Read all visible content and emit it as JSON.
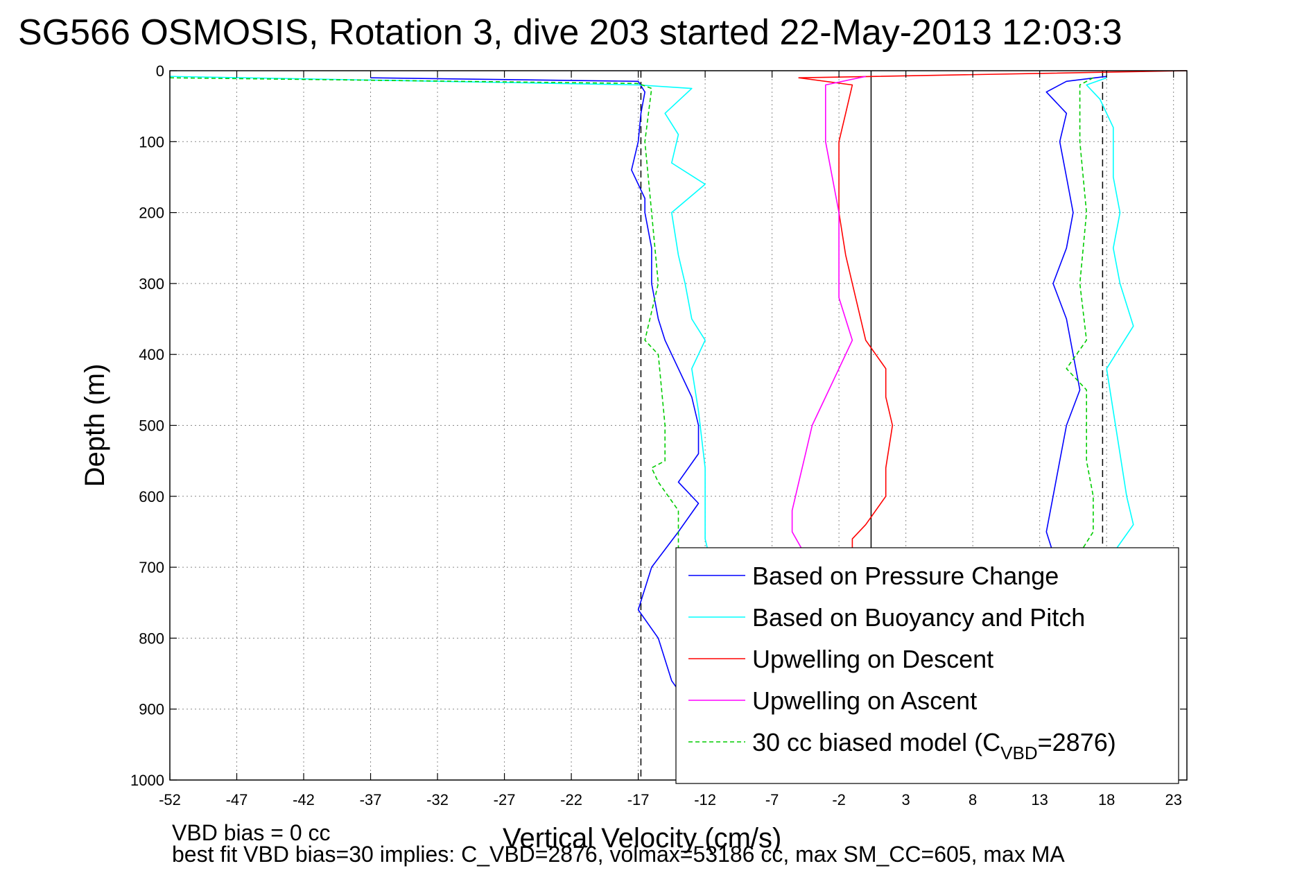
{
  "chart_data": {
    "type": "line",
    "title": "SG566 OSMOSIS, Rotation 3, dive 203 started 22-May-2013 12:03:3",
    "xlabel": "Vertical Velocity (cm/s)",
    "ylabel": "Depth (m)",
    "xlim": [
      -52,
      24
    ],
    "ylim": [
      0,
      1000
    ],
    "y_reversed": true,
    "grid": true,
    "x_ticks": [
      -52,
      -47,
      -42,
      -37,
      -32,
      -27,
      -22,
      -17,
      -12,
      -7,
      -2,
      3,
      8,
      13,
      18,
      23
    ],
    "y_ticks": [
      0,
      100,
      200,
      300,
      400,
      500,
      600,
      700,
      800,
      900,
      1000
    ],
    "reference_lines": [
      {
        "x": -16.8,
        "style": "dashed",
        "color": "#000000"
      },
      {
        "x": 0.4,
        "style": "solid",
        "color": "#000000"
      },
      {
        "x": 17.7,
        "style": "dashed",
        "color": "#000000"
      }
    ],
    "legend_position": "bottom-right",
    "series": [
      {
        "name": "Based on Pressure Change",
        "color": "#0000ff",
        "style": "solid",
        "points": [
          [
            -37,
            10
          ],
          [
            -17,
            15
          ],
          [
            -16.5,
            30
          ],
          [
            -16.8,
            60
          ],
          [
            -17,
            100
          ],
          [
            -17.5,
            140
          ],
          [
            -16.5,
            180
          ],
          [
            -16.5,
            200
          ],
          [
            -16,
            250
          ],
          [
            -16,
            300
          ],
          [
            -15.5,
            350
          ],
          [
            -15,
            380
          ],
          [
            -14,
            420
          ],
          [
            -13,
            460
          ],
          [
            -12.5,
            500
          ],
          [
            -12.5,
            540
          ],
          [
            -14,
            580
          ],
          [
            -12.5,
            610
          ],
          [
            -14,
            650
          ],
          [
            -16,
            700
          ],
          [
            -17,
            760
          ],
          [
            -15.5,
            800
          ],
          [
            -14.5,
            860
          ],
          [
            -13,
            900
          ],
          [
            -12,
            940
          ],
          [
            -10,
            970
          ],
          [
            -5,
            985
          ],
          [
            0,
            990
          ],
          [
            5,
            990
          ],
          [
            16,
            985
          ]
        ]
      },
      {
        "name": "Based on Buoyancy and Pitch",
        "color": "#00ffff",
        "style": "solid",
        "points": [
          [
            -52,
            8
          ],
          [
            -17,
            20
          ],
          [
            -13,
            25
          ],
          [
            -15,
            60
          ],
          [
            -14,
            90
          ],
          [
            -14.5,
            130
          ],
          [
            -12,
            160
          ],
          [
            -14.5,
            200
          ],
          [
            -14,
            260
          ],
          [
            -13.5,
            300
          ],
          [
            -13,
            350
          ],
          [
            -12,
            380
          ],
          [
            -13,
            420
          ],
          [
            -12.5,
            480
          ],
          [
            -12,
            560
          ],
          [
            -12,
            620
          ],
          [
            -12,
            660
          ],
          [
            -11.5,
            700
          ],
          [
            -11,
            800
          ],
          [
            -10.5,
            900
          ],
          [
            -10,
            960
          ],
          [
            -5,
            985
          ],
          [
            0,
            988
          ],
          [
            10,
            990
          ],
          [
            17,
            985
          ]
        ]
      },
      {
        "name": "Upwelling on Descent",
        "color": "#ff0000",
        "style": "solid",
        "points": [
          [
            24,
            0
          ],
          [
            -5,
            10
          ],
          [
            -1,
            20
          ],
          [
            -1.5,
            60
          ],
          [
            -2,
            100
          ],
          [
            -2,
            150
          ],
          [
            -2,
            200
          ],
          [
            -1.5,
            260
          ],
          [
            -1,
            300
          ],
          [
            0,
            380
          ],
          [
            1.5,
            420
          ],
          [
            1.5,
            460
          ],
          [
            2,
            500
          ],
          [
            1.5,
            560
          ],
          [
            1.5,
            600
          ],
          [
            0,
            640
          ],
          [
            -1,
            660
          ],
          [
            -1,
            700
          ],
          [
            -1,
            800
          ],
          [
            -1,
            900
          ],
          [
            0,
            990
          ]
        ]
      },
      {
        "name": "Upwelling on Ascent",
        "color": "#ff00ff",
        "style": "solid",
        "points": [
          [
            0,
            8
          ],
          [
            -3,
            20
          ],
          [
            -3,
            60
          ],
          [
            -3,
            100
          ],
          [
            -2,
            200
          ],
          [
            -2,
            280
          ],
          [
            -2,
            320
          ],
          [
            -1,
            380
          ],
          [
            -2,
            420
          ],
          [
            -3,
            460
          ],
          [
            -4,
            500
          ],
          [
            -4.5,
            540
          ],
          [
            -5,
            580
          ],
          [
            -5.5,
            620
          ],
          [
            -5.5,
            650
          ],
          [
            -4,
            700
          ],
          [
            -3,
            800
          ],
          [
            -2,
            900
          ],
          [
            -2,
            990
          ]
        ]
      },
      {
        "name": "30 cc biased model (C",
        "name_sub": "VBD",
        "name_tail": "=2876)",
        "color": "#00cc00",
        "style": "dashed",
        "points": [
          [
            -52,
            10
          ],
          [
            -17,
            18
          ],
          [
            -16,
            25
          ],
          [
            -16.5,
            100
          ],
          [
            -16,
            200
          ],
          [
            -15.5,
            300
          ],
          [
            -16.5,
            380
          ],
          [
            -15.5,
            400
          ],
          [
            -15,
            500
          ],
          [
            -15,
            550
          ],
          [
            -16,
            560
          ],
          [
            -15.5,
            580
          ],
          [
            -14,
            620
          ],
          [
            -14,
            700
          ],
          [
            -13.5,
            800
          ],
          [
            -13,
            900
          ],
          [
            -12,
            990
          ],
          [
            0,
            990
          ],
          [
            16,
            988
          ]
        ]
      },
      {
        "name": "Based on Pressure Change (ascent)",
        "color": "#0000ff",
        "style": "solid",
        "legend": false,
        "points": [
          [
            18,
            8
          ],
          [
            15,
            15
          ],
          [
            13.5,
            30
          ],
          [
            15,
            60
          ],
          [
            14.5,
            100
          ],
          [
            15,
            150
          ],
          [
            15.5,
            200
          ],
          [
            15,
            250
          ],
          [
            14,
            300
          ],
          [
            15,
            350
          ],
          [
            15.5,
            400
          ],
          [
            16,
            450
          ],
          [
            15,
            500
          ],
          [
            14.5,
            550
          ],
          [
            14,
            600
          ],
          [
            13.5,
            650
          ],
          [
            14,
            680
          ]
        ]
      },
      {
        "name": "Based on Buoyancy and Pitch (ascent)",
        "color": "#00ffff",
        "style": "solid",
        "legend": false,
        "points": [
          [
            18,
            10
          ],
          [
            16.5,
            20
          ],
          [
            17.5,
            40
          ],
          [
            18.5,
            80
          ],
          [
            18.5,
            150
          ],
          [
            19,
            200
          ],
          [
            18.5,
            250
          ],
          [
            19,
            300
          ],
          [
            20,
            360
          ],
          [
            18,
            420
          ],
          [
            18.5,
            480
          ],
          [
            19,
            540
          ],
          [
            19.5,
            600
          ],
          [
            20,
            640
          ],
          [
            18.5,
            680
          ]
        ]
      },
      {
        "name": "30 cc biased model (ascent)",
        "color": "#00cc00",
        "style": "dashed",
        "legend": false,
        "points": [
          [
            17,
            10
          ],
          [
            16,
            20
          ],
          [
            16,
            100
          ],
          [
            16.5,
            200
          ],
          [
            16,
            300
          ],
          [
            16.5,
            380
          ],
          [
            15,
            420
          ],
          [
            16.5,
            450
          ],
          [
            16.5,
            550
          ],
          [
            17,
            600
          ],
          [
            17,
            650
          ],
          [
            16,
            680
          ]
        ]
      }
    ],
    "annotations": [
      {
        "text": "VBD bias = 0 cc"
      },
      {
        "text": "best fit VBD bias=30 implies: C_VBD=2876, volmax=53186 cc, max SM_CC=605, max MA"
      }
    ]
  }
}
